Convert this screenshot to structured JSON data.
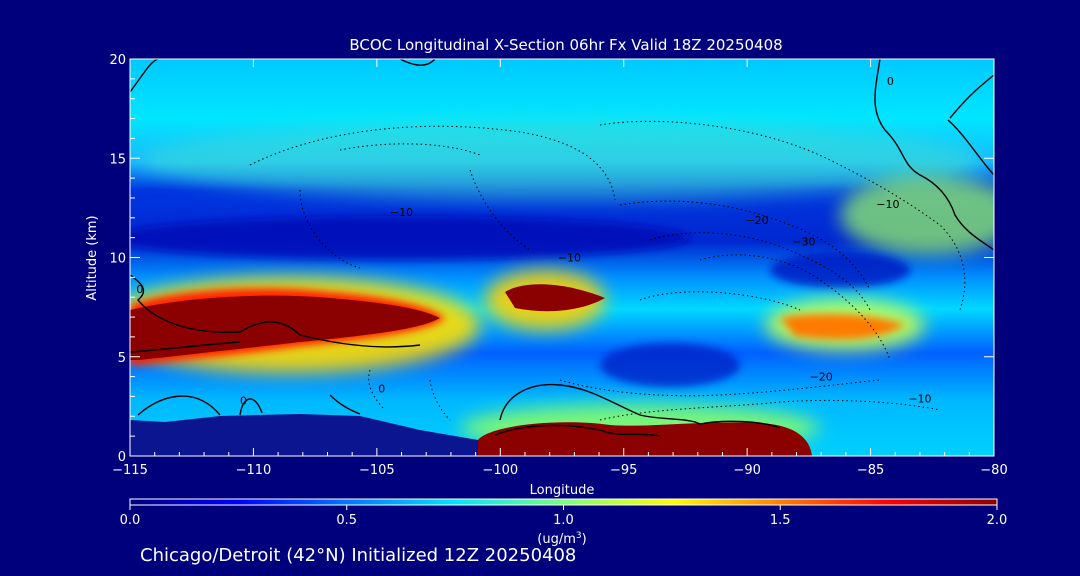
{
  "chart_data": {
    "type": "heatmap",
    "title": "BCOC Longitudinal X-Section 06hr  Fx Valid 18Z 20250408",
    "xlabel": "Longitude",
    "ylabel": "Altitude (km)",
    "xlim": [
      -115,
      -80
    ],
    "ylim": [
      0,
      20
    ],
    "x_ticks": [
      -115,
      -110,
      -105,
      -100,
      -95,
      -90,
      -85,
      -80
    ],
    "y_ticks": [
      0,
      5,
      10,
      15,
      20
    ],
    "colorbar": {
      "range": [
        0.0,
        2.0
      ],
      "ticks": [
        "0.0",
        "0.5",
        "1.0",
        "1.5",
        "2.0"
      ],
      "unit_prefix": "(ug/m",
      "unit_sup": "3",
      "unit_suffix": ")",
      "stops": [
        "#00007d",
        "#0000ff",
        "#0077ff",
        "#00e6ff",
        "#7dff7d",
        "#ffff00",
        "#ff8000",
        "#ff0000",
        "#8b0000"
      ]
    },
    "colormap": "jet",
    "contour_labels": [
      {
        "text": "-10",
        "x": -104.0,
        "y": 12.1
      },
      {
        "text": "-10",
        "x": -97.2,
        "y": 9.8
      },
      {
        "text": "-20",
        "x": -89.6,
        "y": 11.7
      },
      {
        "text": "-30",
        "x": -87.7,
        "y": 10.6
      },
      {
        "text": "-10",
        "x": -84.3,
        "y": 12.5
      },
      {
        "text": "-20",
        "x": -87.0,
        "y": 3.8
      },
      {
        "text": "-10",
        "x": -83.0,
        "y": 2.7
      },
      {
        "text": "0",
        "x": -114.6,
        "y": 8.2
      },
      {
        "text": "0",
        "x": -110.4,
        "y": 2.6
      },
      {
        "text": "0",
        "x": -104.8,
        "y": 3.2
      },
      {
        "text": "0",
        "x": -84.2,
        "y": 18.7
      }
    ],
    "concentration_features": [
      {
        "name": "upper_plume",
        "lon": -108,
        "alt": 7.0,
        "value": 2.0
      },
      {
        "name": "mid_plume",
        "lon": -98,
        "alt": 8.0,
        "value": 2.0
      },
      {
        "name": "surface_plume",
        "lon": -93,
        "alt": 1.0,
        "value": 2.0
      },
      {
        "name": "eastern_plume",
        "lon": -86,
        "alt": 6.5,
        "value": 1.6
      },
      {
        "name": "upper_band",
        "lon": -100,
        "alt": 15.5,
        "value": 0.8
      },
      {
        "name": "mid_low",
        "lon": -103,
        "alt": 11.0,
        "value": 0.1
      }
    ]
  },
  "footer": {
    "text": "Chicago/Detroit (42°N) Initialized 12Z 20250408"
  }
}
